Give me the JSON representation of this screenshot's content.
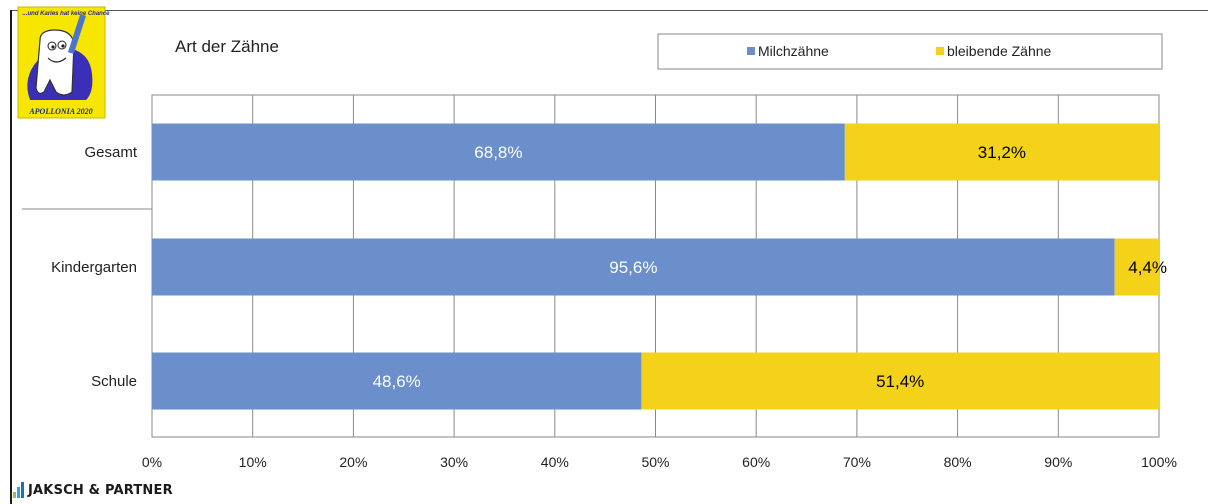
{
  "chart_data": {
    "type": "bar",
    "orientation": "horizontal",
    "stacked": "percent",
    "title": "Art der Zähne",
    "categories": [
      "Gesamt",
      "Kindergarten",
      "Schule"
    ],
    "series": [
      {
        "name": "Milchzähne",
        "values": [
          68.8,
          95.6,
          48.6
        ],
        "labels": [
          "68,8%",
          "95,6%",
          "48,6%"
        ],
        "color": "#6a8fcb",
        "label_color": "#ffffff"
      },
      {
        "name": "bleibende Zähne",
        "values": [
          31.2,
          4.4,
          51.4
        ],
        "labels": [
          "31,2%",
          "4,4%",
          "51,4%"
        ],
        "color": "#f5d21a",
        "label_color": "#000000"
      }
    ],
    "xlim": [
      0,
      100
    ],
    "x_ticks": [
      "0%",
      "10%",
      "20%",
      "30%",
      "40%",
      "50%",
      "60%",
      "70%",
      "80%",
      "90%",
      "100%"
    ],
    "grid": true,
    "legend_position": "top-right"
  },
  "logo": {
    "caption": "APOLLONIA 2020",
    "text": "...und Karies hat keine Chance",
    "colors": {
      "background": "#f7e600",
      "character": "#3b2fb8"
    }
  },
  "footer": {
    "brand": "JAKSCH & PARTNER",
    "bar_colors": [
      "#8ec63f",
      "#2aa6e0",
      "#1e6fb8"
    ]
  }
}
